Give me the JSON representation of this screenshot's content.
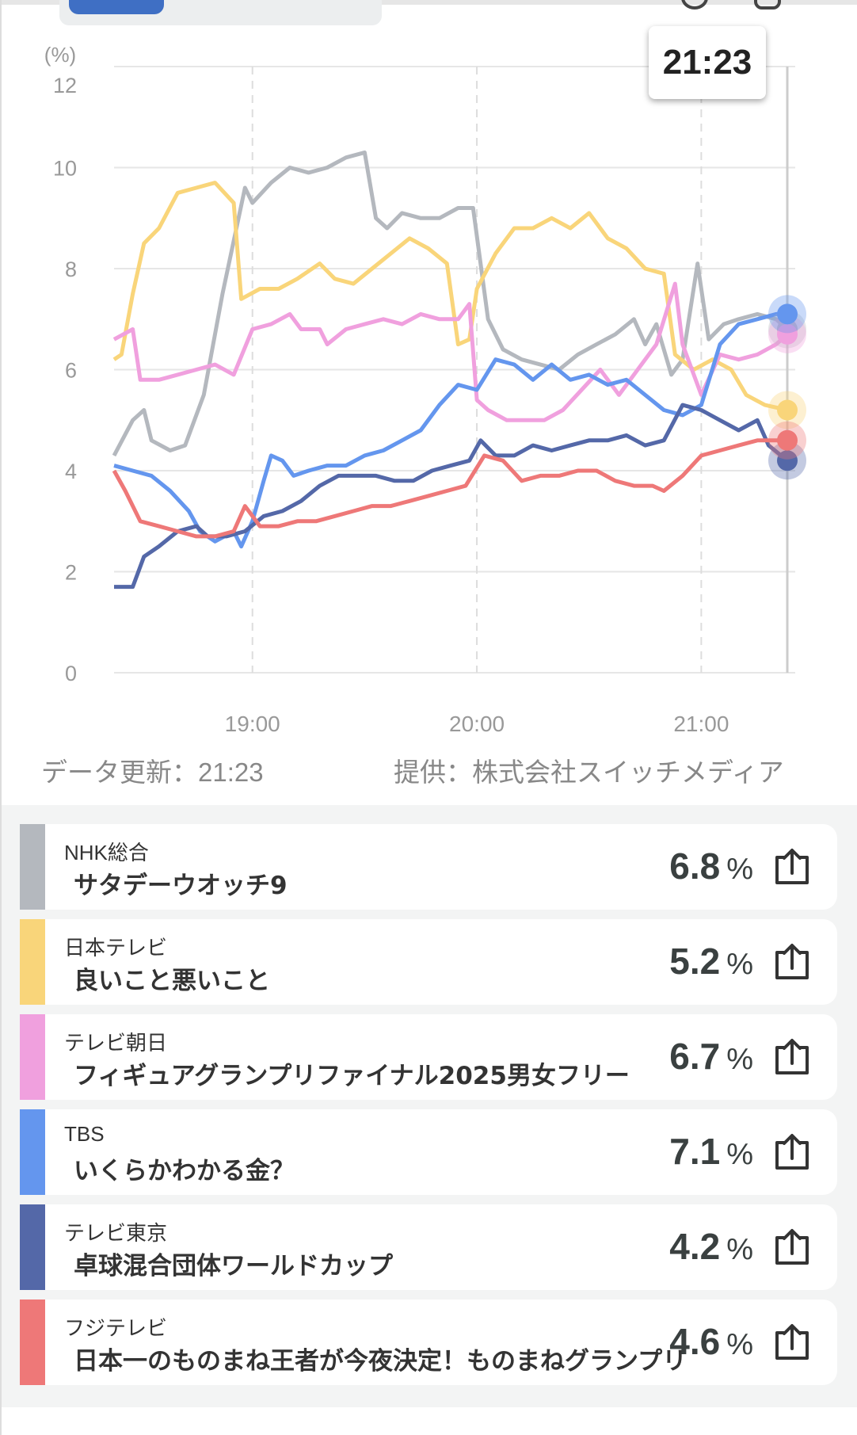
{
  "header": {
    "tooltip_time": "21:23"
  },
  "footer": {
    "updated": "データ更新：21:23",
    "provider": "提供：株式会社スイッチメディア"
  },
  "chart_data": {
    "type": "line",
    "ylabel": "(%)",
    "ylim": [
      0,
      12
    ],
    "yticks": [
      "0",
      "2",
      "4",
      "6",
      "8",
      "10",
      "12"
    ],
    "xlim": [
      "18:23",
      "21:23"
    ],
    "xticks": [
      "19:00",
      "20:00",
      "21:00"
    ],
    "grid": true,
    "cursor": "21:23",
    "series": [
      {
        "key": "nhk",
        "color": "#b4b8be",
        "points": [
          [
            "18:23",
            4.3
          ],
          [
            "18:28",
            5.0
          ],
          [
            "18:31",
            5.2
          ],
          [
            "18:33",
            4.6
          ],
          [
            "18:38",
            4.4
          ],
          [
            "18:42",
            4.5
          ],
          [
            "18:47",
            5.5
          ],
          [
            "18:52",
            7.5
          ],
          [
            "18:58",
            9.6
          ],
          [
            "19:00",
            9.3
          ],
          [
            "19:05",
            9.7
          ],
          [
            "19:10",
            10.0
          ],
          [
            "19:15",
            9.9
          ],
          [
            "19:20",
            10.0
          ],
          [
            "19:25",
            10.2
          ],
          [
            "19:30",
            10.3
          ],
          [
            "19:33",
            9.0
          ],
          [
            "19:36",
            8.8
          ],
          [
            "19:40",
            9.1
          ],
          [
            "19:45",
            9.0
          ],
          [
            "19:50",
            9.0
          ],
          [
            "19:55",
            9.2
          ],
          [
            "19:59",
            9.2
          ],
          [
            "20:03",
            7.0
          ],
          [
            "20:07",
            6.4
          ],
          [
            "20:12",
            6.2
          ],
          [
            "20:17",
            6.1
          ],
          [
            "20:22",
            6.0
          ],
          [
            "20:27",
            6.3
          ],
          [
            "20:32",
            6.5
          ],
          [
            "20:37",
            6.7
          ],
          [
            "20:42",
            7.0
          ],
          [
            "20:45",
            6.5
          ],
          [
            "20:48",
            6.9
          ],
          [
            "20:52",
            5.9
          ],
          [
            "20:55",
            6.2
          ],
          [
            "20:59",
            8.1
          ],
          [
            "21:02",
            6.6
          ],
          [
            "21:06",
            6.9
          ],
          [
            "21:10",
            7.0
          ],
          [
            "21:15",
            7.1
          ],
          [
            "21:20",
            7.0
          ],
          [
            "21:23",
            6.8
          ]
        ]
      },
      {
        "key": "ntv",
        "color": "#f9d57a",
        "points": [
          [
            "18:23",
            6.2
          ],
          [
            "18:25",
            6.3
          ],
          [
            "18:28",
            7.5
          ],
          [
            "18:31",
            8.5
          ],
          [
            "18:35",
            8.8
          ],
          [
            "18:40",
            9.5
          ],
          [
            "18:45",
            9.6
          ],
          [
            "18:50",
            9.7
          ],
          [
            "18:55",
            9.3
          ],
          [
            "18:57",
            7.4
          ],
          [
            "19:02",
            7.6
          ],
          [
            "19:07",
            7.6
          ],
          [
            "19:12",
            7.8
          ],
          [
            "19:18",
            8.1
          ],
          [
            "19:22",
            7.8
          ],
          [
            "19:27",
            7.7
          ],
          [
            "19:32",
            8.0
          ],
          [
            "19:37",
            8.3
          ],
          [
            "19:42",
            8.6
          ],
          [
            "19:47",
            8.4
          ],
          [
            "19:52",
            8.1
          ],
          [
            "19:55",
            6.5
          ],
          [
            "19:58",
            6.6
          ],
          [
            "20:00",
            7.6
          ],
          [
            "20:05",
            8.3
          ],
          [
            "20:10",
            8.8
          ],
          [
            "20:15",
            8.8
          ],
          [
            "20:20",
            9.0
          ],
          [
            "20:25",
            8.8
          ],
          [
            "20:30",
            9.1
          ],
          [
            "20:35",
            8.6
          ],
          [
            "20:40",
            8.4
          ],
          [
            "20:45",
            8.0
          ],
          [
            "20:50",
            7.9
          ],
          [
            "20:53",
            6.3
          ],
          [
            "20:58",
            6.0
          ],
          [
            "21:03",
            6.2
          ],
          [
            "21:08",
            6.0
          ],
          [
            "21:12",
            5.5
          ],
          [
            "21:17",
            5.3
          ],
          [
            "21:23",
            5.2
          ]
        ]
      },
      {
        "key": "asahi",
        "color": "#f0a0de",
        "points": [
          [
            "18:23",
            6.6
          ],
          [
            "18:28",
            6.8
          ],
          [
            "18:30",
            5.8
          ],
          [
            "18:35",
            5.8
          ],
          [
            "18:40",
            5.9
          ],
          [
            "18:45",
            6.0
          ],
          [
            "18:50",
            6.1
          ],
          [
            "18:55",
            5.9
          ],
          [
            "19:00",
            6.8
          ],
          [
            "19:05",
            6.9
          ],
          [
            "19:10",
            7.1
          ],
          [
            "19:13",
            6.8
          ],
          [
            "19:18",
            6.8
          ],
          [
            "19:20",
            6.5
          ],
          [
            "19:25",
            6.8
          ],
          [
            "19:30",
            6.9
          ],
          [
            "19:35",
            7.0
          ],
          [
            "19:40",
            6.9
          ],
          [
            "19:45",
            7.1
          ],
          [
            "19:50",
            7.0
          ],
          [
            "19:55",
            7.0
          ],
          [
            "19:58",
            7.3
          ],
          [
            "20:00",
            5.4
          ],
          [
            "20:03",
            5.2
          ],
          [
            "20:08",
            5.0
          ],
          [
            "20:13",
            5.0
          ],
          [
            "20:18",
            5.0
          ],
          [
            "20:23",
            5.2
          ],
          [
            "20:28",
            5.6
          ],
          [
            "20:33",
            6.0
          ],
          [
            "20:38",
            5.5
          ],
          [
            "20:43",
            6.0
          ],
          [
            "20:48",
            6.5
          ],
          [
            "20:53",
            7.7
          ],
          [
            "20:55",
            6.5
          ],
          [
            "21:00",
            5.5
          ],
          [
            "21:05",
            6.3
          ],
          [
            "21:10",
            6.2
          ],
          [
            "21:15",
            6.3
          ],
          [
            "21:20",
            6.5
          ],
          [
            "21:23",
            6.7
          ]
        ]
      },
      {
        "key": "tbs",
        "color": "#6496ee",
        "points": [
          [
            "18:23",
            4.1
          ],
          [
            "18:28",
            4.0
          ],
          [
            "18:33",
            3.9
          ],
          [
            "18:38",
            3.6
          ],
          [
            "18:43",
            3.2
          ],
          [
            "18:46",
            2.8
          ],
          [
            "18:50",
            2.6
          ],
          [
            "18:55",
            2.8
          ],
          [
            "18:57",
            2.5
          ],
          [
            "19:00",
            3.0
          ],
          [
            "19:03",
            3.8
          ],
          [
            "19:05",
            4.3
          ],
          [
            "19:08",
            4.2
          ],
          [
            "19:11",
            3.9
          ],
          [
            "19:15",
            4.0
          ],
          [
            "19:20",
            4.1
          ],
          [
            "19:25",
            4.1
          ],
          [
            "19:30",
            4.3
          ],
          [
            "19:35",
            4.4
          ],
          [
            "19:40",
            4.6
          ],
          [
            "19:45",
            4.8
          ],
          [
            "19:50",
            5.3
          ],
          [
            "19:55",
            5.7
          ],
          [
            "20:00",
            5.6
          ],
          [
            "20:05",
            6.2
          ],
          [
            "20:10",
            6.1
          ],
          [
            "20:15",
            5.8
          ],
          [
            "20:20",
            6.1
          ],
          [
            "20:25",
            5.8
          ],
          [
            "20:30",
            5.9
          ],
          [
            "20:35",
            5.7
          ],
          [
            "20:40",
            5.8
          ],
          [
            "20:45",
            5.5
          ],
          [
            "20:50",
            5.2
          ],
          [
            "20:55",
            5.1
          ],
          [
            "21:00",
            5.3
          ],
          [
            "21:05",
            6.5
          ],
          [
            "21:10",
            6.9
          ],
          [
            "21:15",
            7.0
          ],
          [
            "21:20",
            7.1
          ],
          [
            "21:23",
            7.1
          ]
        ]
      },
      {
        "key": "tx",
        "color": "#5468a8",
        "points": [
          [
            "18:23",
            1.7
          ],
          [
            "18:28",
            1.7
          ],
          [
            "18:31",
            2.3
          ],
          [
            "18:35",
            2.5
          ],
          [
            "18:40",
            2.8
          ],
          [
            "18:45",
            2.9
          ],
          [
            "18:48",
            2.7
          ],
          [
            "18:53",
            2.7
          ],
          [
            "18:58",
            2.8
          ],
          [
            "19:03",
            3.1
          ],
          [
            "19:08",
            3.2
          ],
          [
            "19:13",
            3.4
          ],
          [
            "19:18",
            3.7
          ],
          [
            "19:23",
            3.9
          ],
          [
            "19:28",
            3.9
          ],
          [
            "19:33",
            3.9
          ],
          [
            "19:38",
            3.8
          ],
          [
            "19:43",
            3.8
          ],
          [
            "19:48",
            4.0
          ],
          [
            "19:53",
            4.1
          ],
          [
            "19:58",
            4.2
          ],
          [
            "20:01",
            4.6
          ],
          [
            "20:05",
            4.3
          ],
          [
            "20:10",
            4.3
          ],
          [
            "20:15",
            4.5
          ],
          [
            "20:20",
            4.4
          ],
          [
            "20:25",
            4.5
          ],
          [
            "20:30",
            4.6
          ],
          [
            "20:35",
            4.6
          ],
          [
            "20:40",
            4.7
          ],
          [
            "20:45",
            4.5
          ],
          [
            "20:50",
            4.6
          ],
          [
            "20:55",
            5.3
          ],
          [
            "21:00",
            5.2
          ],
          [
            "21:05",
            5.0
          ],
          [
            "21:10",
            4.8
          ],
          [
            "21:15",
            5.0
          ],
          [
            "21:18",
            4.5
          ],
          [
            "21:23",
            4.2
          ]
        ]
      },
      {
        "key": "fuji",
        "color": "#ee7878",
        "points": [
          [
            "18:23",
            4.0
          ],
          [
            "18:26",
            3.6
          ],
          [
            "18:30",
            3.0
          ],
          [
            "18:35",
            2.9
          ],
          [
            "18:40",
            2.8
          ],
          [
            "18:45",
            2.7
          ],
          [
            "18:50",
            2.7
          ],
          [
            "18:55",
            2.8
          ],
          [
            "18:58",
            3.3
          ],
          [
            "19:02",
            2.9
          ],
          [
            "19:07",
            2.9
          ],
          [
            "19:12",
            3.0
          ],
          [
            "19:17",
            3.0
          ],
          [
            "19:22",
            3.1
          ],
          [
            "19:27",
            3.2
          ],
          [
            "19:32",
            3.3
          ],
          [
            "19:37",
            3.3
          ],
          [
            "19:42",
            3.4
          ],
          [
            "19:47",
            3.5
          ],
          [
            "19:52",
            3.6
          ],
          [
            "19:57",
            3.7
          ],
          [
            "20:02",
            4.3
          ],
          [
            "20:07",
            4.2
          ],
          [
            "20:12",
            3.8
          ],
          [
            "20:17",
            3.9
          ],
          [
            "20:22",
            3.9
          ],
          [
            "20:27",
            4.0
          ],
          [
            "20:32",
            4.0
          ],
          [
            "20:37",
            3.8
          ],
          [
            "20:42",
            3.7
          ],
          [
            "20:47",
            3.7
          ],
          [
            "20:50",
            3.6
          ],
          [
            "20:55",
            3.9
          ],
          [
            "21:00",
            4.3
          ],
          [
            "21:05",
            4.4
          ],
          [
            "21:10",
            4.5
          ],
          [
            "21:15",
            4.6
          ],
          [
            "21:23",
            4.6
          ]
        ]
      }
    ]
  },
  "list": [
    {
      "channel": "NHK総合",
      "title": "サタデーウオッチ9",
      "value": "6.8",
      "unit": "%",
      "color": "#b4b8be",
      "icon": "share-icon"
    },
    {
      "channel": "日本テレビ",
      "title": "良いこと悪いこと",
      "value": "5.2",
      "unit": "%",
      "color": "#f9d57a",
      "icon": "share-icon"
    },
    {
      "channel": "テレビ朝日",
      "title": "フィギュアグランプリファイナル2025男女フリー",
      "value": "6.7",
      "unit": "%",
      "color": "#f0a0de",
      "icon": "share-icon"
    },
    {
      "channel": "TBS",
      "title": "いくらかわかる金？",
      "value": "7.1",
      "unit": "%",
      "color": "#6496ee",
      "icon": "share-icon"
    },
    {
      "channel": "テレビ東京",
      "title": "卓球混合団体ワールドカップ",
      "value": "4.2",
      "unit": "%",
      "color": "#5468a8",
      "icon": "share-icon"
    },
    {
      "channel": "フジテレビ",
      "title": "日本一のものまね王者が今夜決定！ものまねグランプリ",
      "value": "4.6",
      "unit": "%",
      "color": "#ee7878",
      "icon": "share-icon"
    }
  ]
}
